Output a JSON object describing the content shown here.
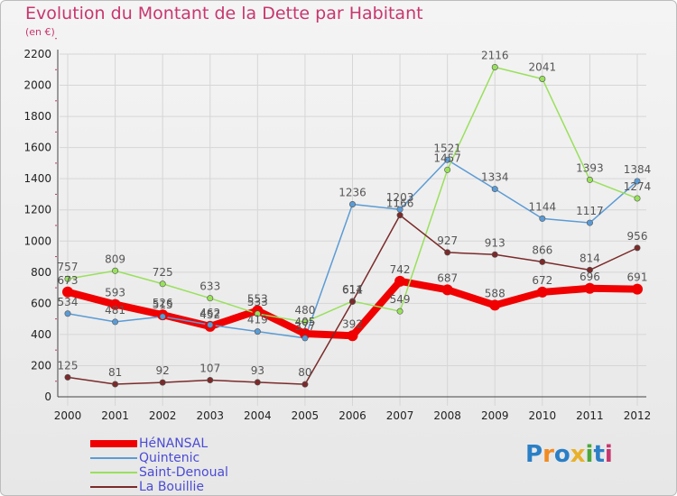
{
  "title": "Evolution du Montant de la Dette par Habitant",
  "subtitle": "(en €)",
  "logo": {
    "text": "Proxiti",
    "colors": [
      "#2a7fc6",
      "#f28b22",
      "#2a7fc6",
      "#e8b12a",
      "#4aa83a",
      "#2a7fc6",
      "#c8366e"
    ]
  },
  "chart_data": {
    "type": "line",
    "x": [
      "2000",
      "2001",
      "2002",
      "2003",
      "2004",
      "2005",
      "2006",
      "2007",
      "2008",
      "2009",
      "2010",
      "2011",
      "2012"
    ],
    "ylim": [
      0,
      2200
    ],
    "yticks": [
      0,
      200,
      400,
      600,
      800,
      1000,
      1200,
      1400,
      1600,
      1800,
      2000,
      2200
    ],
    "grid": true,
    "legend_position": "bottom-left",
    "series": [
      {
        "name": "HéNANSAL",
        "color": "#f00000",
        "width": 8,
        "values": [
          673,
          593,
          526,
          452,
          553,
          405,
          392,
          742,
          687,
          588,
          672,
          696,
          691
        ],
        "labels": [
          "673",
          "593",
          "526",
          "452",
          "553",
          "405",
          "392",
          "742",
          "687",
          "588",
          "672",
          "696",
          "691"
        ]
      },
      {
        "name": "Quintenic",
        "color": "#5b9bd5",
        "width": 1.5,
        "values": [
          534,
          481,
          515,
          462,
          419,
          377,
          1236,
          1203,
          1521,
          1334,
          1144,
          1117,
          1384
        ],
        "labels": [
          "534",
          "481",
          "515",
          "462",
          "419",
          "377",
          "1236",
          "1203",
          "1521",
          "1334",
          "1144",
          "1117",
          "1384"
        ]
      },
      {
        "name": "Saint-Denoual",
        "color": "#99e05c",
        "width": 1.5,
        "values": [
          757,
          809,
          725,
          633,
          533,
          480,
          614,
          549,
          1457,
          2116,
          2041,
          1393,
          1274
        ],
        "labels": [
          "757",
          "809",
          "725",
          "633",
          "533",
          "480",
          "614",
          "549",
          "1457",
          "2116",
          "2041",
          "1393",
          "1274"
        ]
      },
      {
        "name": "La Bouillie",
        "color": "#7b2a2a",
        "width": 1.5,
        "values": [
          125,
          81,
          92,
          107,
          93,
          80,
          611,
          1166,
          927,
          913,
          866,
          814,
          956
        ],
        "labels": [
          "125",
          "81",
          "92",
          "107",
          "93",
          "80",
          "611",
          "1166",
          "927",
          "913",
          "866",
          "814",
          "956"
        ]
      }
    ]
  }
}
